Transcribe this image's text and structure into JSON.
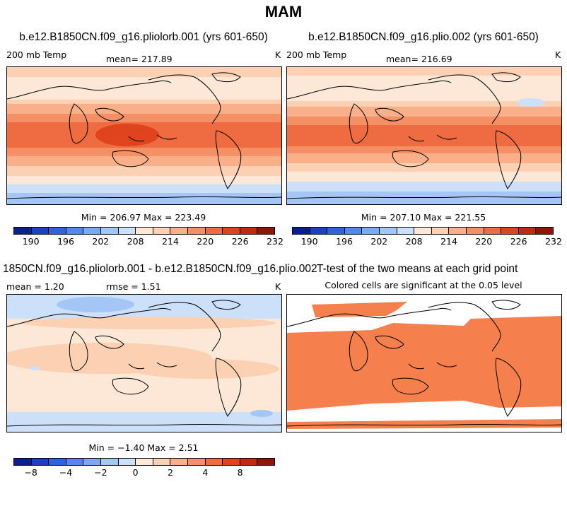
{
  "title": "MAM",
  "panels": [
    {
      "title": "b.e12.B1850CN.f09_g16.pliolorb.001 (yrs 601-650)",
      "left_label": "200 mb Temp",
      "center_label": "mean= 217.89",
      "right_label": "K",
      "minmax": "Min = 206.97 Max = 223.49"
    },
    {
      "title": "b.e12.B1850CN.f09_g16.plio.002 (yrs 601-650)",
      "left_label": "200 mb Temp",
      "center_label": "mean= 216.69",
      "right_label": "K",
      "minmax": "Min = 207.10 Max = 221.55"
    },
    {
      "title": "1850CN.f09_g16.pliolorb.001 - b.e12.B1850CN.f09_g16.plio.002",
      "left_label": "mean =    1.20",
      "center_label": "rmse =    1.51",
      "right_label": "K",
      "minmax": "Min =  −1.40 Max =    2.51"
    },
    {
      "title": "T-test of the two means at each grid point",
      "subtitle": "Colored cells are significant at the 0.05 level"
    }
  ],
  "colorbar_abs": {
    "ticks": [
      "190",
      "196",
      "202",
      "208",
      "214",
      "220",
      "226",
      "232"
    ],
    "colors": [
      "#0a1f8f",
      "#1a3fc4",
      "#2f62de",
      "#5288ee",
      "#7aaaf4",
      "#a3c6f7",
      "#cde0f9",
      "#fde8d8",
      "#fcd0b2",
      "#f9b08a",
      "#f58f66",
      "#ef6c42",
      "#e0441f",
      "#c02a10",
      "#8e1508"
    ]
  },
  "colorbar_diff": {
    "ticks": [
      "−8",
      "−4",
      "−2",
      "0",
      "2",
      "4",
      "8"
    ],
    "colors": [
      "#0a1f8f",
      "#1a3fc4",
      "#2f62de",
      "#5288ee",
      "#7aaaf4",
      "#a3c6f7",
      "#cde0f9",
      "#fde8d8",
      "#fcd0b2",
      "#f9b08a",
      "#f58f66",
      "#ef6c42",
      "#e0441f",
      "#c02a10",
      "#8e1508"
    ]
  },
  "palette": {
    "pale": "#fde8d8",
    "light": "#fcd0b2",
    "mid": "#f9b08a",
    "orange": "#f58f66",
    "strong": "#ef6c42",
    "deep": "#e0441f",
    "blue_pale": "#cde0f9",
    "blue_light": "#a3c6f7",
    "blue_mid": "#7aaaf4",
    "ttest": "#f5804d"
  }
}
